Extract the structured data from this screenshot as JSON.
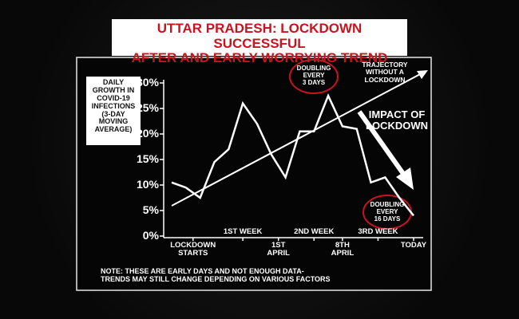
{
  "chart_data": {
    "type": "line",
    "title": "UTTAR PRADESH: LOCKDOWN SUCCESSFUL\nAFTER AND EARLY WORRYING TREND",
    "y_label": "DAILY\nGROWTH IN\nCOVID-19\nINFECTIONS\n(3-DAY\nMOVING\nAVERAGE)",
    "x": [
      0,
      1,
      2,
      3,
      4,
      5,
      6,
      7,
      8,
      9,
      10,
      11,
      12,
      13,
      14,
      15,
      16,
      17
    ],
    "values": [
      10.5,
      9.5,
      7.5,
      14.5,
      17,
      26,
      22,
      16,
      11.5,
      20.5,
      20.5,
      27.5,
      21.5,
      21,
      10.5,
      11.5,
      7.5,
      4
    ],
    "color": "#ffffff",
    "xlim": [
      0,
      17
    ],
    "xticks": [
      {
        "value": 1.5,
        "label": "LOCKDOWN\nSTARTS"
      },
      {
        "value": 5,
        "label": "1ST WEEK"
      },
      {
        "value": 7.5,
        "label": "1ST\nAPRIL"
      },
      {
        "value": 10,
        "label": "2ND WEEK"
      },
      {
        "value": 12,
        "label": "8TH\nAPRIL"
      },
      {
        "value": 14.5,
        "label": "3RD WEEK"
      },
      {
        "value": 17,
        "label": "TODAY"
      }
    ],
    "ylim": [
      0,
      30
    ],
    "yticks": [
      {
        "value": 0,
        "label": "0%"
      },
      {
        "value": 5,
        "label": "5%"
      },
      {
        "value": 10,
        "label": "10%"
      },
      {
        "value": 15,
        "label": "15%"
      },
      {
        "value": 20,
        "label": "20%"
      },
      {
        "value": 25,
        "label": "25%"
      },
      {
        "value": 30,
        "label": "30%"
      }
    ],
    "annotations": [
      "DOUBLING\nEVERY\n3 DAYS",
      "TRAJECTORY\nWITHOUT A\nLOCKDOWN",
      "IMPACT OF\nLOCKDOWN",
      "DOUBLING\nEVERY\n16 DAYS"
    ],
    "note": "NOTE: THESE ARE EARLY DAYS AND NOT ENOUGH DATA-\nTRENDS MAY STILL CHANGE DEPENDING ON VARIOUS FACTORS"
  }
}
